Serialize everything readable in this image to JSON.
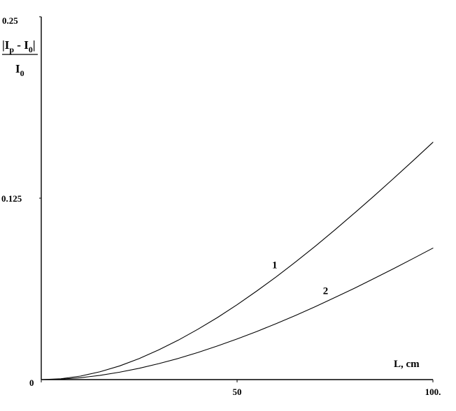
{
  "chart_data": {
    "type": "line",
    "xlabel": "L, cm",
    "ylabel": {
      "numerator": "|I",
      "numerator_sub_p": "p",
      "numerator_mid": " - I",
      "numerator_sub_0": "0",
      "numerator_end": "|",
      "denominator": "I",
      "denominator_sub": "0"
    },
    "xlim": [
      0,
      100
    ],
    "ylim": [
      0,
      0.25
    ],
    "x_ticks": [
      {
        "value": 0,
        "label": "0"
      },
      {
        "value": 50,
        "label": "50"
      },
      {
        "value": 100,
        "label": "100."
      }
    ],
    "y_ticks": [
      {
        "value": 0.25,
        "label": "0.25"
      },
      {
        "value": 0.125,
        "label": "0.125"
      }
    ],
    "grid": false,
    "series": [
      {
        "name": "1",
        "x": [
          0,
          5,
          10,
          15,
          20,
          25,
          30,
          35,
          40,
          45,
          50,
          55,
          60,
          65,
          70,
          75,
          80,
          85,
          90,
          95,
          100
        ],
        "y": [
          0,
          0.0006,
          0.0024,
          0.0054,
          0.0094,
          0.0145,
          0.0205,
          0.0272,
          0.0347,
          0.0428,
          0.0516,
          0.061,
          0.0708,
          0.0812,
          0.092,
          0.1032,
          0.1148,
          0.1266,
          0.1387,
          0.151,
          0.1635
        ]
      },
      {
        "name": "2",
        "x": [
          0,
          5,
          10,
          15,
          20,
          25,
          30,
          35,
          40,
          45,
          50,
          55,
          60,
          65,
          70,
          75,
          80,
          85,
          90,
          95,
          100
        ],
        "y": [
          0,
          0.0003,
          0.0013,
          0.0029,
          0.0051,
          0.0078,
          0.011,
          0.0146,
          0.0187,
          0.0232,
          0.028,
          0.0331,
          0.0386,
          0.0443,
          0.0503,
          0.0566,
          0.063,
          0.0697,
          0.0765,
          0.0835,
          0.0906
        ]
      }
    ]
  }
}
